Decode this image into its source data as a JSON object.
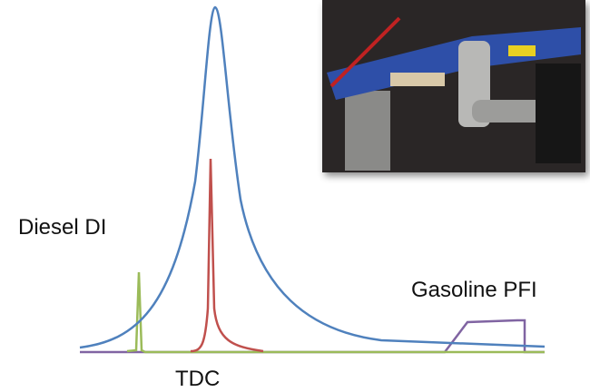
{
  "labels": {
    "diesel": "Diesel DI",
    "gasoline": "Gasoline PFI",
    "tdc": "TDC"
  }
}
